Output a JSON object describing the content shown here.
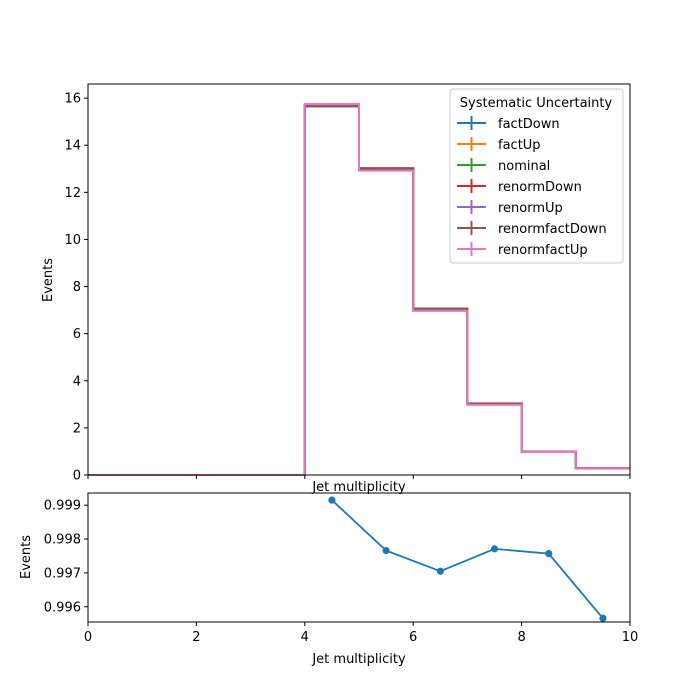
{
  "chart_data": [
    {
      "type": "line",
      "subtype": "step-histogram",
      "title": "",
      "xlabel": "Jet multiplicity",
      "ylabel": "Events",
      "xlim": [
        0,
        10
      ],
      "ylim": [
        0,
        16.6
      ],
      "xticks": [
        0,
        2,
        4,
        6,
        8,
        10
      ],
      "xtick_labels_visible": false,
      "yticks": [
        0,
        2,
        4,
        6,
        8,
        10,
        12,
        14,
        16
      ],
      "ytick_labels": [
        "0",
        "2",
        "4",
        "6",
        "8",
        "10",
        "12",
        "14",
        "16"
      ],
      "bin_edges": [
        0,
        1,
        2,
        3,
        4,
        5,
        6,
        7,
        8,
        9,
        10
      ],
      "legend": {
        "title": "Systematic Uncertainty",
        "placement": "upper right"
      },
      "series": [
        {
          "name": "factDown",
          "color": "#1f77b4",
          "values": [
            0,
            0,
            0,
            0,
            15.7,
            13.0,
            7.05,
            3.02,
            1.0,
            0.28
          ]
        },
        {
          "name": "factUp",
          "color": "#ff7f0e",
          "values": [
            0,
            0,
            0,
            0,
            15.7,
            12.95,
            7.0,
            3.0,
            0.99,
            0.28
          ]
        },
        {
          "name": "nominal",
          "color": "#2ca02c",
          "values": [
            0,
            0,
            0,
            0,
            15.7,
            12.97,
            7.02,
            3.01,
            1.0,
            0.28
          ]
        },
        {
          "name": "renormDown",
          "color": "#d62728",
          "values": [
            0,
            0,
            0,
            0,
            15.65,
            13.02,
            7.06,
            3.03,
            1.0,
            0.28
          ]
        },
        {
          "name": "renormUp",
          "color": "#9467bd",
          "values": [
            0,
            0,
            0,
            0,
            15.72,
            12.93,
            6.99,
            2.99,
            0.99,
            0.28
          ]
        },
        {
          "name": "renormfactDown",
          "color": "#8c564b",
          "values": [
            0,
            0,
            0,
            0,
            15.65,
            13.03,
            7.07,
            3.04,
            1.0,
            0.28
          ]
        },
        {
          "name": "renormfactUp",
          "color": "#e377c2",
          "values": [
            0,
            0,
            0,
            0,
            15.75,
            12.92,
            6.97,
            2.98,
            0.98,
            0.27
          ]
        }
      ]
    },
    {
      "type": "line",
      "title": "",
      "xlabel": "Jet multiplicity",
      "ylabel": "Events",
      "xlim": [
        0,
        10
      ],
      "ylim": [
        0.99555,
        0.99936
      ],
      "xticks": [
        0,
        2,
        4,
        6,
        8,
        10
      ],
      "xtick_labels": [
        "0",
        "2",
        "4",
        "6",
        "8",
        "10"
      ],
      "yticks": [
        0.996,
        0.997,
        0.998,
        0.999
      ],
      "ytick_labels": [
        "0.996",
        "0.997",
        "0.998",
        "0.999"
      ],
      "series": [
        {
          "color": "#1f77b4",
          "x": [
            4.5,
            5.5,
            6.5,
            7.5,
            8.5,
            9.5
          ],
          "y": [
            0.99915,
            0.99766,
            0.99705,
            0.99771,
            0.99757,
            0.99566
          ]
        }
      ]
    }
  ]
}
